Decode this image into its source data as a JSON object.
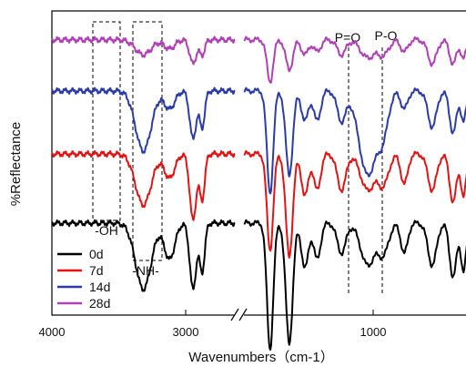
{
  "chart_data": {
    "type": "line",
    "title": "",
    "xlabel": "Wavenumbers（cm-1）",
    "ylabel": "%Reflectance",
    "x_axis": {
      "reversed": true,
      "broken": true,
      "segment_left": [
        4000,
        2600
      ],
      "segment_right": [
        1800,
        500
      ],
      "tick_labels": [
        "4000",
        "3000",
        "1000"
      ],
      "tick_values": [
        4000,
        3000,
        1000
      ]
    },
    "legend": {
      "placement": "bottom-left",
      "entries": [
        {
          "label": "0d",
          "color": "#000000"
        },
        {
          "label": "7d",
          "color": "#e01414"
        },
        {
          "label": "14d",
          "color": "#2b3ba8"
        },
        {
          "label": "28d",
          "color": "#b040b5"
        }
      ]
    },
    "annotations": [
      {
        "text": "-OH",
        "box_x_range": [
          3720,
          3480
        ]
      },
      {
        "text": "-NH-",
        "box_x_range": [
          3340,
          3140
        ]
      },
      {
        "text": "P=O",
        "line_x": 1200
      },
      {
        "text": "P-O",
        "line_x": 970
      }
    ],
    "series": [
      {
        "name": "0d",
        "color": "#000000",
        "baseline": 0.3,
        "bands": [
          [
            3300,
            0.22,
            60
          ],
          [
            3100,
            0.12,
            40
          ],
          [
            2920,
            0.22,
            25
          ],
          [
            2850,
            0.16,
            20
          ],
          [
            1650,
            0.42,
            18
          ],
          [
            1540,
            0.4,
            20
          ],
          [
            1450,
            0.15,
            20
          ],
          [
            1380,
            0.12,
            20
          ],
          [
            1240,
            0.1,
            25
          ],
          [
            1090,
            0.14,
            40
          ],
          [
            1000,
            0.1,
            30
          ],
          [
            880,
            0.1,
            20
          ],
          [
            720,
            0.14,
            25
          ],
          [
            600,
            0.18,
            20
          ],
          [
            540,
            0.16,
            15
          ]
        ]
      },
      {
        "name": "7d",
        "color": "#e01414",
        "baseline": 0.53,
        "bands": [
          [
            3300,
            0.17,
            60
          ],
          [
            3100,
            0.08,
            40
          ],
          [
            2920,
            0.22,
            25
          ],
          [
            2850,
            0.15,
            20
          ],
          [
            1650,
            0.32,
            18
          ],
          [
            1540,
            0.34,
            20
          ],
          [
            1450,
            0.14,
            20
          ],
          [
            1380,
            0.12,
            20
          ],
          [
            1240,
            0.12,
            25
          ],
          [
            1090,
            0.12,
            40
          ],
          [
            1000,
            0.1,
            30
          ],
          [
            880,
            0.1,
            20
          ],
          [
            720,
            0.12,
            25
          ],
          [
            600,
            0.16,
            20
          ],
          [
            540,
            0.14,
            15
          ]
        ]
      },
      {
        "name": "14d",
        "color": "#2b3ba8",
        "baseline": 0.74,
        "bands": [
          [
            3300,
            0.2,
            60
          ],
          [
            3100,
            0.06,
            40
          ],
          [
            2920,
            0.16,
            25
          ],
          [
            2850,
            0.12,
            20
          ],
          [
            1650,
            0.34,
            18
          ],
          [
            1540,
            0.28,
            20
          ],
          [
            1450,
            0.1,
            20
          ],
          [
            1380,
            0.1,
            20
          ],
          [
            1240,
            0.1,
            25
          ],
          [
            1090,
            0.28,
            50
          ],
          [
            1000,
            0.12,
            30
          ],
          [
            880,
            0.06,
            20
          ],
          [
            720,
            0.12,
            25
          ],
          [
            600,
            0.14,
            20
          ],
          [
            540,
            0.1,
            15
          ]
        ]
      },
      {
        "name": "28d",
        "color": "#b040b5",
        "baseline": 0.91,
        "bands": [
          [
            3300,
            0.05,
            60
          ],
          [
            3100,
            0.03,
            40
          ],
          [
            2920,
            0.08,
            25
          ],
          [
            2850,
            0.05,
            20
          ],
          [
            1650,
            0.14,
            18
          ],
          [
            1540,
            0.1,
            20
          ],
          [
            1450,
            0.05,
            20
          ],
          [
            1380,
            0.04,
            20
          ],
          [
            1240,
            0.05,
            25
          ],
          [
            1090,
            0.06,
            40
          ],
          [
            1000,
            0.05,
            30
          ],
          [
            880,
            0.04,
            20
          ],
          [
            720,
            0.08,
            25
          ],
          [
            600,
            0.08,
            20
          ],
          [
            540,
            0.06,
            15
          ]
        ]
      }
    ]
  }
}
